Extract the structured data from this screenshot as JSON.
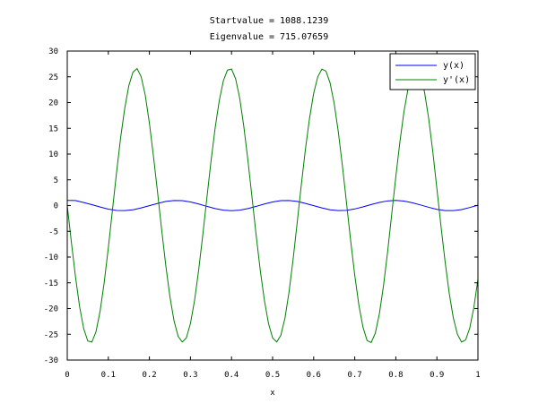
{
  "chart_data": {
    "type": "line",
    "title_lines": [
      "Startvalue =  1088.1239",
      "Eigenvalue = 715.07659"
    ],
    "xlabel": "x",
    "ylabel": "",
    "xlim": [
      0,
      1
    ],
    "ylim": [
      -30,
      30
    ],
    "x_ticks": [
      0,
      0.1,
      0.2,
      0.3,
      0.4,
      0.5,
      0.6,
      0.7,
      0.8,
      0.9,
      1
    ],
    "x_tick_labels": [
      "0",
      "0.1",
      "0.2",
      "0.3",
      "0.4",
      "0.5",
      "0.6",
      "0.7",
      "0.8",
      "0.9",
      "1"
    ],
    "y_ticks": [
      -30,
      -25,
      -20,
      -15,
      -10,
      -5,
      0,
      5,
      10,
      15,
      20,
      25,
      30
    ],
    "y_tick_labels": [
      "-30",
      "-25",
      "-20",
      "-15",
      "-10",
      "-5",
      "0",
      "5",
      "10",
      "15",
      "20",
      "25",
      "30"
    ],
    "grid": false,
    "legend_position": "top-right",
    "series": [
      {
        "name": "y(x)",
        "color": "#0000ff",
        "x": [
          0,
          0.02,
          0.04,
          0.06,
          0.08,
          0.1,
          0.12,
          0.14,
          0.16,
          0.18,
          0.2,
          0.22,
          0.24,
          0.26,
          0.28,
          0.3,
          0.32,
          0.34,
          0.36,
          0.38,
          0.4,
          0.42,
          0.44,
          0.46,
          0.48,
          0.5,
          0.52,
          0.54,
          0.56,
          0.58,
          0.6,
          0.62,
          0.64,
          0.66,
          0.68,
          0.7,
          0.72,
          0.74,
          0.76,
          0.78,
          0.8,
          0.82,
          0.84,
          0.86,
          0.88,
          0.9,
          0.92,
          0.94,
          0.96,
          0.98,
          1
        ],
        "y": [
          1.0,
          0.97,
          0.58,
          0.18,
          -0.28,
          -0.7,
          -0.95,
          -0.98,
          -0.82,
          -0.46,
          -0.02,
          0.42,
          0.8,
          0.98,
          0.95,
          0.7,
          0.3,
          -0.16,
          -0.58,
          -0.89,
          -1.0,
          -0.89,
          -0.58,
          -0.16,
          0.3,
          0.7,
          0.95,
          0.98,
          0.8,
          0.42,
          -0.02,
          -0.46,
          -0.82,
          -0.98,
          -0.93,
          -0.66,
          -0.26,
          0.2,
          0.6,
          0.9,
          1.0,
          0.87,
          0.55,
          0.12,
          -0.34,
          -0.74,
          -0.97,
          -0.98,
          -0.78,
          -0.38,
          0.06
        ]
      },
      {
        "name": "y'(x)",
        "color": "#008000",
        "x": [
          0,
          0.01,
          0.02,
          0.03,
          0.04,
          0.05,
          0.06,
          0.07,
          0.08,
          0.09,
          0.1,
          0.11,
          0.12,
          0.13,
          0.14,
          0.15,
          0.16,
          0.17,
          0.18,
          0.19,
          0.2,
          0.21,
          0.22,
          0.23,
          0.24,
          0.25,
          0.26,
          0.27,
          0.28,
          0.29,
          0.3,
          0.31,
          0.32,
          0.33,
          0.34,
          0.35,
          0.36,
          0.37,
          0.38,
          0.39,
          0.4,
          0.41,
          0.42,
          0.43,
          0.44,
          0.45,
          0.46,
          0.47,
          0.48,
          0.49,
          0.5,
          0.51,
          0.52,
          0.53,
          0.54,
          0.55,
          0.56,
          0.57,
          0.58,
          0.59,
          0.6,
          0.61,
          0.62,
          0.63,
          0.64,
          0.65,
          0.66,
          0.67,
          0.68,
          0.69,
          0.7,
          0.71,
          0.72,
          0.73,
          0.74,
          0.75,
          0.76,
          0.77,
          0.78,
          0.79,
          0.8,
          0.81,
          0.82,
          0.83,
          0.84,
          0.85,
          0.86,
          0.87,
          0.88,
          0.89,
          0.9,
          0.91,
          0.92,
          0.93,
          0.94,
          0.95,
          0.96,
          0.97,
          0.98,
          0.99,
          1
        ],
        "y": [
          0.0,
          -7.1,
          -13.8,
          -19.6,
          -23.9,
          -26.3,
          -26.5,
          -24.5,
          -20.5,
          -14.9,
          -8.2,
          -0.9,
          6.4,
          13.2,
          18.9,
          23.3,
          25.9,
          26.6,
          25.0,
          21.4,
          16.0,
          9.5,
          2.5,
          -4.8,
          -11.7,
          -17.7,
          -22.4,
          -25.4,
          -26.5,
          -25.7,
          -22.9,
          -18.4,
          -12.5,
          -5.7,
          1.5,
          8.6,
          15.0,
          20.3,
          24.2,
          26.3,
          26.5,
          24.6,
          20.8,
          15.3,
          8.7,
          1.5,
          -5.8,
          -12.6,
          -18.4,
          -22.9,
          -25.7,
          -26.5,
          -25.2,
          -21.9,
          -16.8,
          -10.4,
          -3.2,
          4.1,
          11.0,
          17.0,
          21.8,
          25.0,
          26.5,
          26.1,
          23.8,
          19.8,
          14.3,
          7.7,
          0.5,
          -6.8,
          -13.5,
          -19.3,
          -23.6,
          -26.2,
          -26.6,
          -24.8,
          -21.0,
          -15.6,
          -9.0,
          -1.7,
          5.6,
          12.4,
          18.3,
          22.8,
          25.7,
          26.6,
          25.2,
          22.0,
          16.9,
          10.5,
          3.3,
          -4.0,
          -10.9,
          -17.0,
          -21.8,
          -25.0,
          -26.5,
          -26.1,
          -23.8,
          -19.8,
          -14.3
        ]
      }
    ]
  }
}
